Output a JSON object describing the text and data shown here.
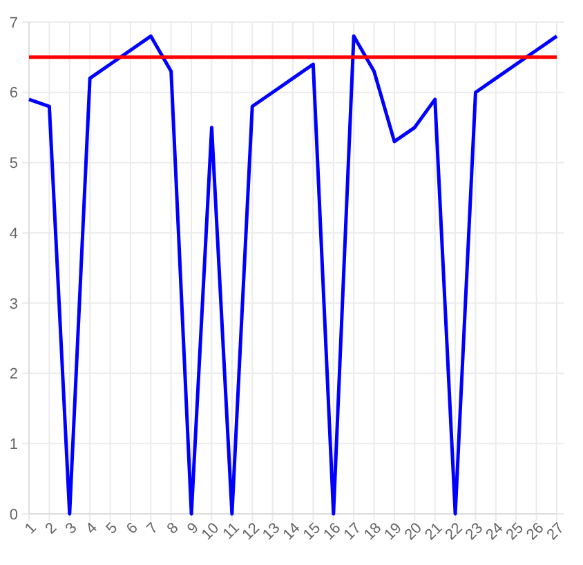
{
  "chart_data": {
    "type": "line",
    "categories": [
      "1",
      "2",
      "3",
      "4",
      "5",
      "6",
      "7",
      "8",
      "9",
      "10",
      "11",
      "12",
      "13",
      "14",
      "15",
      "16",
      "17",
      "18",
      "19",
      "20",
      "21",
      "22",
      "23",
      "24",
      "25",
      "26",
      "27"
    ],
    "series": [
      {
        "color": "#0000ff",
        "values": [
          5.9,
          5.8,
          0,
          6.2,
          6.4,
          6.6,
          6.8,
          6.3,
          0,
          5.5,
          0,
          5.8,
          6.0,
          6.2,
          6.4,
          0,
          6.8,
          6.3,
          5.3,
          5.5,
          5.9,
          0,
          6.0,
          6.2,
          6.4,
          6.6,
          6.8
        ]
      }
    ],
    "ylim": [
      0,
      7
    ],
    "yticks": [
      0,
      1,
      2,
      3,
      4,
      5,
      6,
      7
    ],
    "grid": true,
    "marker": "none",
    "line_style": "solid",
    "ref_lines": [
      {
        "axis": "y",
        "value": 6.5,
        "label": null,
        "color": "#ff0000"
      }
    ]
  }
}
